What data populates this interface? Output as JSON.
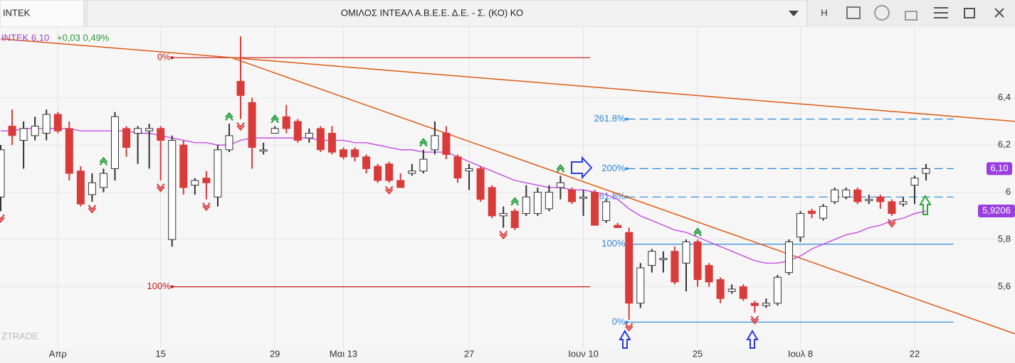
{
  "header": {
    "tab": "INTEK",
    "title": "ΟΜΙΛΟΣ ΙΝΤΕΑΛ Α.Β.Ε.Ε. Δ.Ε. - Σ. (ΚΟ) ΚΟ",
    "menu_label": "H"
  },
  "chart_data": {
    "type": "candlestick",
    "quote_name": "INTEK 6,10",
    "quote_change": "+0,03 0,49%",
    "watermark": "ZTRADE",
    "categories": [
      null,
      null,
      null,
      null,
      null,
      "Απρ",
      null,
      null,
      null,
      null,
      null,
      null,
      null,
      null,
      "15",
      null,
      null,
      null,
      null,
      null,
      null,
      null,
      null,
      null,
      "29",
      null,
      null,
      null,
      null,
      null,
      "Μαι 13",
      null,
      null,
      null,
      null,
      null,
      null,
      null,
      null,
      null,
      null,
      "27",
      null,
      null,
      null,
      null,
      null,
      null,
      null,
      null,
      null,
      "Ιουν 10",
      null,
      null,
      null,
      null,
      null,
      null,
      null,
      null,
      null,
      "25",
      null,
      null,
      null,
      null,
      null,
      null,
      null,
      null,
      "Ιουλ 8",
      null,
      null,
      null,
      null,
      null,
      null,
      null,
      null,
      null,
      "22",
      null
    ],
    "open": [
      5.98,
      6.28,
      6.22,
      6.24,
      6.25,
      6.33,
      6.27,
      6.09,
      5.99,
      6.02,
      6.1,
      6.27,
      6.25,
      6.26,
      6.27,
      5.8,
      6.2,
      6.03,
      6.06,
      5.98,
      6.18,
      6.47,
      6.38,
      6.18,
      6.25,
      6.32,
      6.3,
      6.23,
      6.27,
      6.25,
      6.18,
      6.18,
      6.15,
      6.11,
      6.12,
      6.05,
      6.08,
      6.09,
      6.18,
      6.25,
      6.15,
      6.09,
      6.1,
      6.02,
      5.9,
      5.92,
      5.91,
      5.91,
      5.93,
      6.02,
      6.01,
      5.98,
      6.0,
      5.88,
      5.86,
      5.83,
      5.53,
      5.69,
      5.72,
      5.75,
      5.7,
      5.79,
      5.69,
      5.63,
      5.58,
      5.6,
      5.53,
      5.52,
      5.53,
      5.66,
      5.81,
      5.92,
      5.89,
      5.96,
      5.98,
      6.01,
      5.97,
      5.98,
      5.96,
      5.95,
      6.03,
      6.08
    ],
    "high": [
      6.2,
      6.35,
      6.3,
      6.32,
      6.35,
      6.34,
      6.3,
      6.11,
      6.08,
      6.1,
      6.34,
      6.28,
      6.28,
      6.29,
      6.28,
      6.24,
      6.22,
      6.06,
      6.09,
      6.2,
      6.29,
      6.66,
      6.4,
      6.21,
      6.28,
      6.37,
      6.31,
      6.27,
      6.28,
      6.28,
      6.19,
      6.19,
      6.16,
      6.12,
      6.13,
      6.08,
      6.12,
      6.18,
      6.3,
      6.28,
      6.16,
      6.12,
      6.11,
      6.03,
      5.94,
      5.93,
      6.03,
      6.02,
      6.03,
      6.07,
      6.02,
      6.01,
      6.01,
      5.97,
      5.87,
      5.85,
      5.7,
      5.76,
      5.75,
      5.77,
      5.8,
      5.8,
      5.7,
      5.64,
      5.61,
      5.61,
      5.54,
      5.55,
      5.65,
      5.8,
      5.92,
      5.93,
      5.95,
      6.02,
      6.02,
      6.02,
      5.99,
      5.99,
      5.97,
      5.98,
      6.07,
      6.12
    ],
    "low": [
      5.92,
      6.2,
      6.1,
      6.22,
      6.22,
      6.25,
      6.05,
      5.94,
      5.96,
      6.0,
      6.05,
      6.15,
      6.12,
      6.1,
      6.05,
      5.77,
      5.99,
      5.99,
      5.97,
      5.94,
      6.17,
      6.31,
      6.1,
      6.16,
      6.25,
      6.25,
      6.21,
      6.21,
      6.17,
      6.16,
      6.14,
      6.13,
      6.08,
      6.04,
      6.04,
      6.02,
      6.07,
      6.08,
      6.16,
      6.14,
      6.04,
      6.01,
      5.96,
      5.89,
      5.85,
      5.84,
      5.9,
      5.9,
      5.92,
      5.97,
      5.95,
      5.9,
      5.86,
      5.87,
      5.85,
      5.46,
      5.51,
      5.66,
      5.66,
      5.61,
      5.58,
      5.6,
      5.6,
      5.53,
      5.57,
      5.54,
      5.49,
      5.51,
      5.52,
      5.65,
      5.79,
      5.89,
      5.88,
      5.95,
      5.97,
      5.95,
      5.95,
      5.93,
      5.9,
      5.94,
      5.95,
      6.05
    ],
    "close": [
      6.18,
      6.24,
      6.27,
      6.28,
      6.33,
      6.26,
      6.08,
      5.95,
      6.04,
      6.08,
      6.32,
      6.19,
      6.27,
      6.27,
      6.22,
      6.22,
      6.02,
      6.05,
      6.04,
      6.18,
      6.24,
      6.41,
      6.19,
      6.18,
      6.27,
      6.27,
      6.22,
      6.25,
      6.18,
      6.17,
      6.15,
      6.15,
      6.1,
      6.05,
      6.05,
      6.02,
      6.09,
      6.14,
      6.24,
      6.16,
      6.06,
      6.1,
      5.97,
      5.9,
      5.91,
      5.85,
      5.98,
      6.0,
      6.0,
      6.04,
      5.96,
      5.98,
      5.86,
      5.96,
      5.85,
      5.53,
      5.68,
      5.75,
      5.72,
      5.62,
      5.79,
      5.63,
      5.62,
      5.55,
      5.59,
      5.55,
      5.52,
      5.53,
      5.64,
      5.79,
      5.91,
      5.91,
      5.94,
      6.01,
      6.01,
      5.96,
      5.97,
      5.96,
      5.91,
      5.96,
      6.06,
      6.1
    ],
    "ma_values": [
      6.26,
      6.26,
      6.27,
      6.27,
      6.27,
      6.27,
      6.27,
      6.26,
      6.26,
      6.26,
      6.26,
      6.26,
      6.25,
      6.25,
      6.24,
      6.23,
      6.22,
      6.21,
      6.21,
      6.2,
      6.2,
      6.22,
      6.23,
      6.23,
      6.23,
      6.23,
      6.23,
      6.23,
      6.22,
      6.22,
      6.22,
      6.21,
      6.21,
      6.2,
      6.19,
      6.18,
      6.18,
      6.17,
      6.17,
      6.17,
      6.15,
      6.13,
      6.11,
      6.09,
      6.07,
      6.05,
      6.04,
      6.03,
      6.02,
      6.02,
      6.01,
      6.01,
      6.0,
      5.99,
      5.97,
      5.93,
      5.9,
      5.88,
      5.86,
      5.84,
      5.83,
      5.81,
      5.79,
      5.77,
      5.75,
      5.73,
      5.71,
      5.7,
      5.7,
      5.71,
      5.73,
      5.76,
      5.78,
      5.8,
      5.82,
      5.83,
      5.85,
      5.86,
      5.88,
      5.89,
      5.91,
      5.92
    ],
    "up_color": "#ffffff",
    "down_color": "#d93a3a",
    "ma_color": "#c23fe0",
    "trend_color": "#dd5a12",
    "ylim": [
      5.34,
      6.7
    ],
    "yticks": [
      {
        "value": 5.6,
        "label": "5,6"
      },
      {
        "value": 5.8,
        "label": "5,8"
      },
      6,
      {
        "value": 6.2,
        "label": "6,2"
      },
      {
        "value": 6.4,
        "label": "6,4"
      }
    ],
    "last_price": {
      "value": 6.1,
      "label": "6,10"
    },
    "ma_last": {
      "value": 5.9206,
      "label": "5,9206"
    },
    "trendlines": [
      {
        "x": [
          0,
          88.8
        ],
        "y": [
          6.65,
          6.3
        ]
      },
      {
        "x": [
          20.2,
          88.8
        ],
        "y": [
          6.57,
          5.4
        ]
      }
    ],
    "fib_sets": [
      {
        "color": "#cc1515",
        "x": [
          15,
          51.6
        ],
        "levels": [
          {
            "label": "0%",
            "value": 6.57,
            "dashed": false
          },
          {
            "label": "100%",
            "value": 5.6,
            "dashed": false
          }
        ]
      },
      {
        "color": "#2a86d8",
        "x": [
          54.8,
          83.4
        ],
        "levels": [
          {
            "label": "0%",
            "value": 5.45,
            "dashed": false
          },
          {
            "label": "100%",
            "value": 5.78,
            "dashed": false
          },
          {
            "label": "161.8%",
            "value": 5.98,
            "dashed": true
          },
          {
            "label": "200%",
            "value": 6.1,
            "dashed": true
          },
          {
            "label": "261.8%",
            "value": 6.31,
            "dashed": true
          }
        ]
      }
    ],
    "buy_signals": [
      9,
      20,
      24,
      37,
      45,
      49,
      61
    ],
    "sell_signals": [
      0,
      8,
      14,
      18,
      21,
      34,
      44,
      55,
      66,
      78
    ],
    "grid": true
  }
}
